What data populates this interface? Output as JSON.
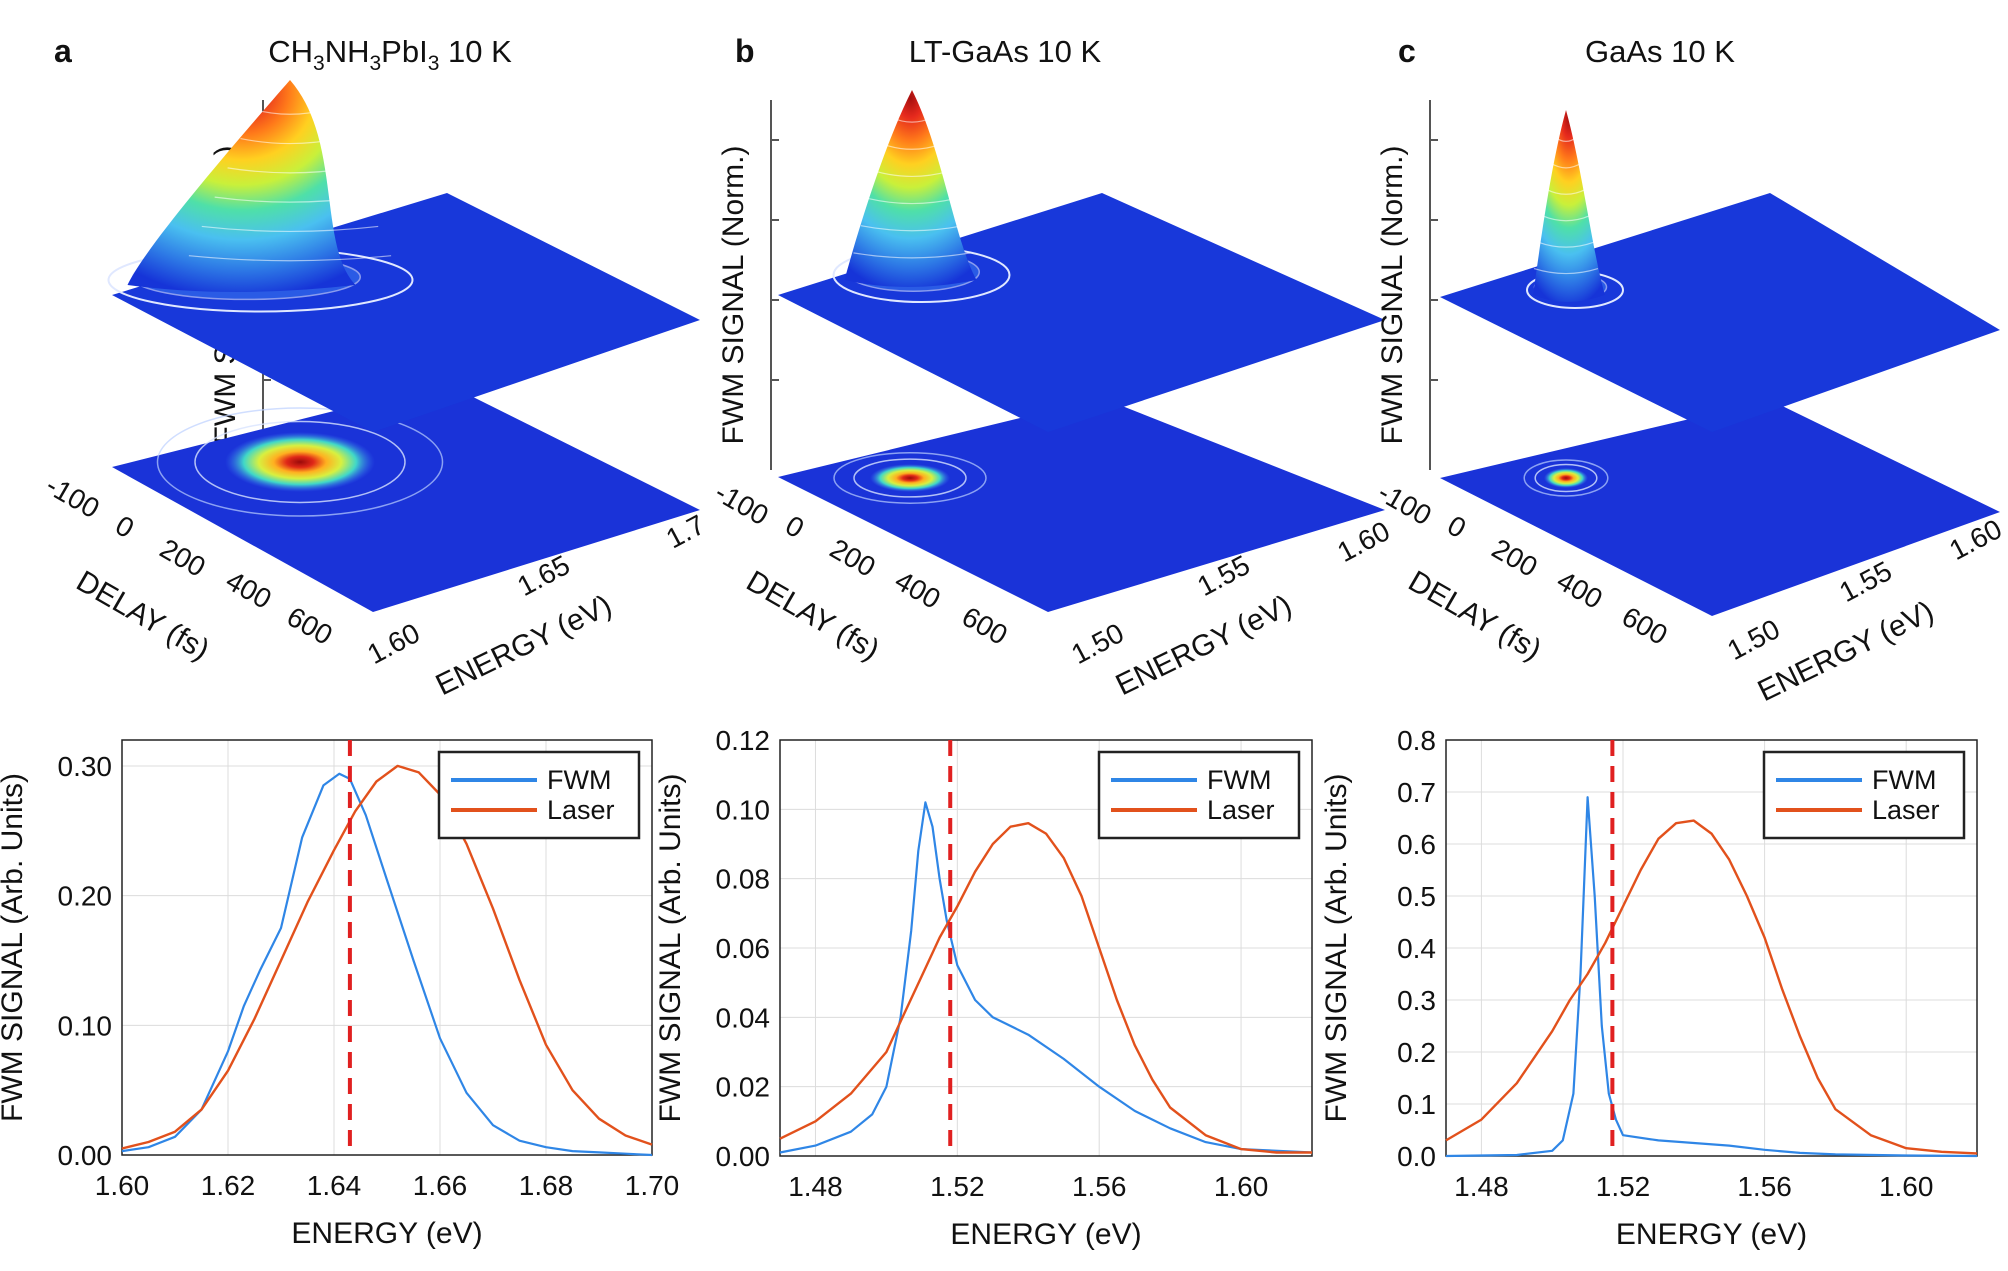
{
  "figure": {
    "panel_labels": [
      "a",
      "b",
      "c"
    ],
    "panel_titles": [
      "CH3NH3PbI3 10 K",
      "LT-GaAs 10 K",
      "GaAs 10 K"
    ]
  },
  "chart_data": [
    {
      "type": "surface3d",
      "panel": "a",
      "title": "CH3NH3PbI3 10 K",
      "zlabel": "FWM SIGNAL (Norm.)",
      "xlabel": "DELAY (fs)",
      "ylabel": "ENERGY (eV)",
      "x_ticks": [
        "-100",
        "0",
        "200",
        "400",
        "600"
      ],
      "y_ticks": [
        "1.60",
        "1.65",
        "1.7"
      ],
      "peak": {
        "delay": 50,
        "energy": 1.64
      }
    },
    {
      "type": "surface3d",
      "panel": "b",
      "title": "LT-GaAs 10 K",
      "zlabel": "FWM SIGNAL (Norm.)",
      "xlabel": "DELAY (fs)",
      "ylabel": "ENERGY (eV)",
      "x_ticks": [
        "-100",
        "0",
        "200",
        "400",
        "600"
      ],
      "y_ticks": [
        "1.50",
        "1.55",
        "1.60"
      ],
      "peak": {
        "delay": 0,
        "energy": 1.51
      }
    },
    {
      "type": "surface3d",
      "panel": "c",
      "title": "GaAs 10 K",
      "zlabel": "FWM SIGNAL (Norm.)",
      "xlabel": "DELAY (fs)",
      "ylabel": "ENERGY (eV)",
      "x_ticks": [
        "-100",
        "0",
        "200",
        "400",
        "600"
      ],
      "y_ticks": [
        "1.50",
        "1.55",
        "1.60"
      ],
      "peak": {
        "delay": 0,
        "energy": 1.51
      }
    },
    {
      "type": "line",
      "panel": "a",
      "xlabel": "ENERGY (eV)",
      "ylabel": "FWM SIGNAL (Arb. Units)",
      "xlim": [
        1.6,
        1.7
      ],
      "ylim": [
        0,
        0.32
      ],
      "x_ticks": [
        "1.60",
        "1.62",
        "1.64",
        "1.66",
        "1.68",
        "1.70"
      ],
      "y_ticks": [
        "0.00",
        "0.10",
        "0.20",
        "0.30"
      ],
      "vline": 1.643,
      "series": [
        {
          "name": "FWM",
          "color": "#2f86e6",
          "x": [
            1.6,
            1.605,
            1.61,
            1.615,
            1.62,
            1.623,
            1.626,
            1.63,
            1.634,
            1.638,
            1.641,
            1.643,
            1.646,
            1.65,
            1.655,
            1.66,
            1.665,
            1.67,
            1.675,
            1.68,
            1.685,
            1.69,
            1.695,
            1.7
          ],
          "y": [
            0.003,
            0.006,
            0.014,
            0.035,
            0.08,
            0.115,
            0.142,
            0.175,
            0.245,
            0.285,
            0.294,
            0.29,
            0.262,
            0.212,
            0.15,
            0.09,
            0.048,
            0.023,
            0.011,
            0.006,
            0.003,
            0.002,
            0.001,
            0.0
          ]
        },
        {
          "name": "Laser",
          "color": "#e2511c",
          "x": [
            1.6,
            1.605,
            1.61,
            1.615,
            1.62,
            1.625,
            1.63,
            1.635,
            1.64,
            1.644,
            1.648,
            1.652,
            1.656,
            1.66,
            1.665,
            1.67,
            1.675,
            1.68,
            1.685,
            1.69,
            1.695,
            1.7
          ],
          "y": [
            0.005,
            0.01,
            0.018,
            0.035,
            0.065,
            0.105,
            0.15,
            0.195,
            0.235,
            0.265,
            0.288,
            0.3,
            0.295,
            0.278,
            0.24,
            0.19,
            0.135,
            0.085,
            0.05,
            0.028,
            0.015,
            0.008
          ]
        }
      ]
    },
    {
      "type": "line",
      "panel": "b",
      "xlabel": "ENERGY (eV)",
      "ylabel": "FWM SIGNAL (Arb. Units)",
      "xlim": [
        1.47,
        1.62
      ],
      "ylim": [
        0,
        0.12
      ],
      "x_ticks": [
        "1.48",
        "1.52",
        "1.56",
        "1.60"
      ],
      "y_ticks": [
        "0.00",
        "0.02",
        "0.04",
        "0.06",
        "0.08",
        "0.10",
        "0.12"
      ],
      "vline": 1.518,
      "series": [
        {
          "name": "FWM",
          "color": "#2f86e6",
          "x": [
            1.47,
            1.48,
            1.49,
            1.496,
            1.5,
            1.504,
            1.507,
            1.509,
            1.511,
            1.513,
            1.515,
            1.517,
            1.52,
            1.525,
            1.53,
            1.54,
            1.55,
            1.56,
            1.57,
            1.58,
            1.59,
            1.6,
            1.62
          ],
          "y": [
            0.001,
            0.003,
            0.007,
            0.012,
            0.02,
            0.04,
            0.065,
            0.088,
            0.102,
            0.095,
            0.08,
            0.068,
            0.055,
            0.045,
            0.04,
            0.035,
            0.028,
            0.02,
            0.013,
            0.008,
            0.004,
            0.002,
            0.001
          ]
        },
        {
          "name": "Laser",
          "color": "#e2511c",
          "x": [
            1.47,
            1.48,
            1.49,
            1.5,
            1.505,
            1.51,
            1.515,
            1.52,
            1.525,
            1.53,
            1.535,
            1.54,
            1.545,
            1.55,
            1.555,
            1.56,
            1.565,
            1.57,
            1.575,
            1.58,
            1.59,
            1.6,
            1.61,
            1.62
          ],
          "y": [
            0.005,
            0.01,
            0.018,
            0.03,
            0.041,
            0.052,
            0.063,
            0.072,
            0.082,
            0.09,
            0.095,
            0.096,
            0.093,
            0.086,
            0.075,
            0.06,
            0.045,
            0.032,
            0.022,
            0.014,
            0.006,
            0.002,
            0.001,
            0.001
          ]
        }
      ]
    },
    {
      "type": "line",
      "panel": "c",
      "xlabel": "ENERGY (eV)",
      "ylabel": "FWM SIGNAL (Arb. Units)",
      "xlim": [
        1.47,
        1.62
      ],
      "ylim": [
        0,
        0.8
      ],
      "x_ticks": [
        "1.48",
        "1.52",
        "1.56",
        "1.60"
      ],
      "y_ticks": [
        "0.0",
        "0.1",
        "0.2",
        "0.3",
        "0.4",
        "0.5",
        "0.6",
        "0.7",
        "0.8"
      ],
      "vline": 1.517,
      "series": [
        {
          "name": "FWM",
          "color": "#2f86e6",
          "x": [
            1.47,
            1.49,
            1.5,
            1.503,
            1.506,
            1.508,
            1.51,
            1.512,
            1.514,
            1.516,
            1.518,
            1.52,
            1.53,
            1.54,
            1.55,
            1.56,
            1.57,
            1.58,
            1.6,
            1.62
          ],
          "y": [
            0.0,
            0.002,
            0.01,
            0.03,
            0.12,
            0.35,
            0.69,
            0.5,
            0.25,
            0.12,
            0.07,
            0.04,
            0.03,
            0.025,
            0.02,
            0.012,
            0.006,
            0.003,
            0.001,
            0.0
          ]
        },
        {
          "name": "Laser",
          "color": "#e2511c",
          "x": [
            1.47,
            1.48,
            1.49,
            1.5,
            1.505,
            1.51,
            1.515,
            1.52,
            1.525,
            1.53,
            1.535,
            1.54,
            1.545,
            1.55,
            1.555,
            1.56,
            1.565,
            1.57,
            1.575,
            1.58,
            1.59,
            1.6,
            1.61,
            1.62
          ],
          "y": [
            0.03,
            0.07,
            0.14,
            0.24,
            0.3,
            0.35,
            0.41,
            0.48,
            0.55,
            0.61,
            0.64,
            0.645,
            0.62,
            0.57,
            0.5,
            0.42,
            0.32,
            0.23,
            0.15,
            0.09,
            0.04,
            0.015,
            0.008,
            0.005
          ]
        }
      ]
    }
  ]
}
